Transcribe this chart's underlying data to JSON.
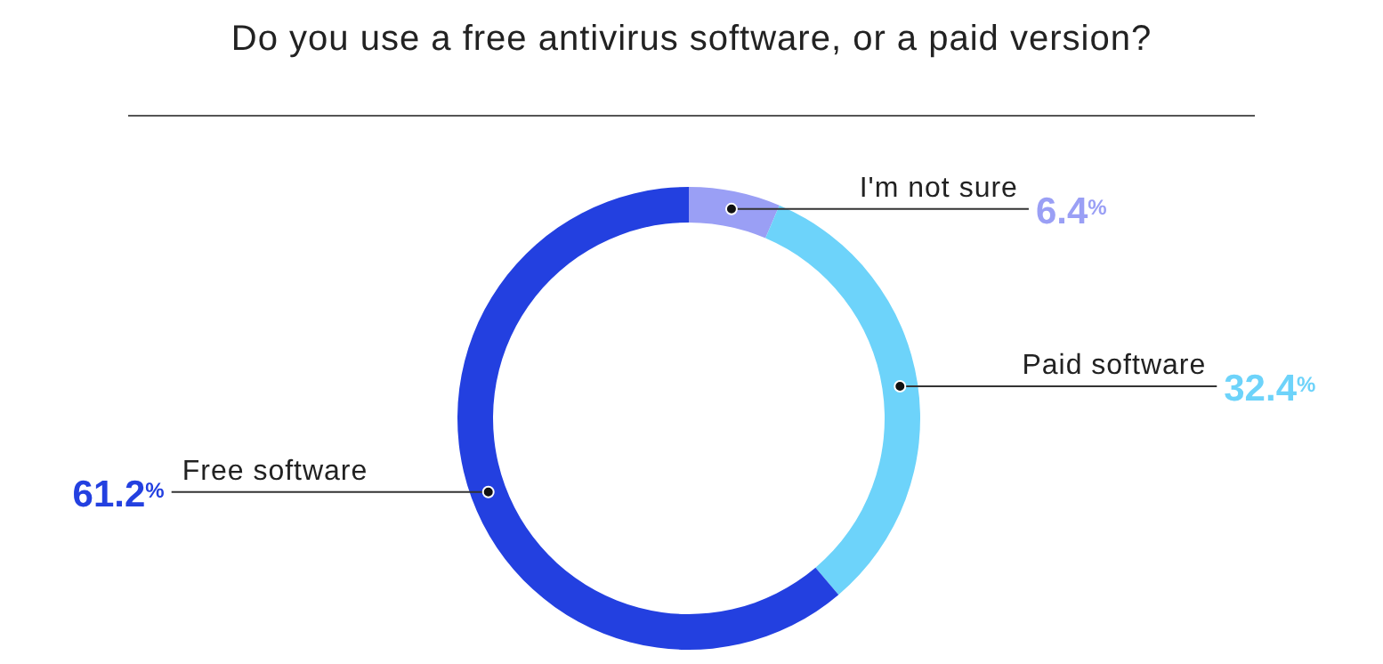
{
  "chart_data": {
    "type": "donut",
    "title": "Do you use a free antivirus software, or a paid version?",
    "categories": [
      "I'm not sure",
      "Paid software",
      "Free software"
    ],
    "values": [
      6.4,
      32.4,
      61.2
    ],
    "colors": [
      "#9a9ff5",
      "#6dd3fa",
      "#2340e0"
    ],
    "value_labels": [
      "6.4$^{%}$",
      "32.4$^{%}$",
      "61.2$^{%}$"
    ]
  }
}
